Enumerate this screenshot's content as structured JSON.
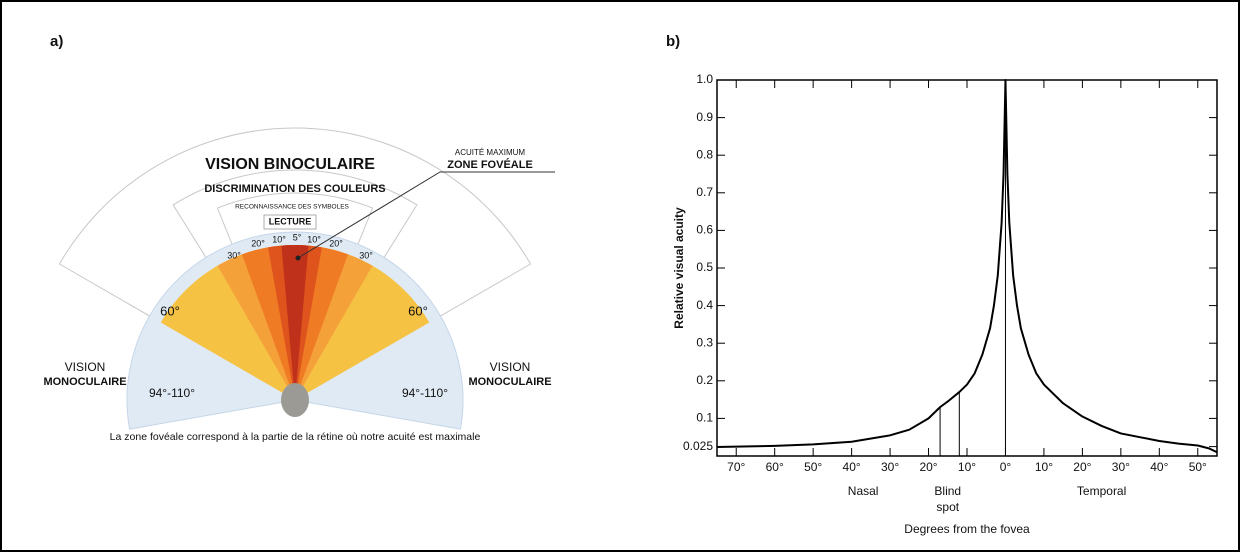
{
  "panel_a": {
    "label": "a)",
    "binocular": "VISION BINOCULAIRE",
    "colors": "DISCRIMINATION DES COULEURS",
    "symbols": "RECONNAISSANCE DES SYMBOLES",
    "reading": "LECTURE",
    "acuity": "ACUITÉ MAXIMUM",
    "fovea": "ZONE FOVÉALE",
    "angle_labels": [
      "60°",
      "30°",
      "20°",
      "10°",
      "5°",
      "10°",
      "20°",
      "30°",
      "60°"
    ],
    "monocular_left": [
      "VISION",
      "MONOCULAIRE"
    ],
    "monocular_right": [
      "VISION",
      "MONOCULAIRE"
    ],
    "range_left": "94°-110°",
    "range_right": "94°-110°",
    "caption": "La zone fovéale correspond à la partie de la rétine où notre acuité est maximale"
  },
  "chart_data": {
    "type": "line",
    "label": "b)",
    "xlabel": "Degrees from the fovea",
    "ylabel": "Relative visual acuity",
    "x": [
      -75,
      -70,
      -60,
      -50,
      -40,
      -30,
      -25,
      -20,
      -17,
      -15,
      -12,
      -10,
      -8,
      -6,
      -4,
      -3,
      -2,
      -1,
      -0.5,
      0,
      0.5,
      1,
      2,
      3,
      4,
      6,
      8,
      10,
      15,
      20,
      25,
      30,
      40,
      45,
      50,
      53,
      55
    ],
    "series": [
      {
        "color": "#000000",
        "values": [
          0.024,
          0.025,
          0.027,
          0.031,
          0.038,
          0.055,
          0.07,
          0.1,
          0.13,
          0.145,
          0.17,
          0.19,
          0.22,
          0.27,
          0.34,
          0.4,
          0.48,
          0.62,
          0.75,
          1.0,
          0.75,
          0.62,
          0.48,
          0.4,
          0.34,
          0.27,
          0.22,
          0.19,
          0.14,
          0.105,
          0.08,
          0.06,
          0.04,
          0.033,
          0.028,
          0.02,
          0.01
        ]
      }
    ],
    "vertical_lines": [
      {
        "x": -17,
        "y": 0.13
      },
      {
        "x": -12,
        "y": 0.17
      },
      {
        "x": 0,
        "y": 1.0
      }
    ],
    "xlim": [
      -75,
      55
    ],
    "ylim": [
      0,
      1
    ],
    "xticks": [
      {
        "value": -70,
        "label": "70°"
      },
      {
        "value": -60,
        "label": "60°"
      },
      {
        "value": -50,
        "label": "50°"
      },
      {
        "value": -40,
        "label": "40°"
      },
      {
        "value": -30,
        "label": "30°"
      },
      {
        "value": -20,
        "label": "20°"
      },
      {
        "value": -10,
        "label": "10°"
      },
      {
        "value": 0,
        "label": "0°"
      },
      {
        "value": 10,
        "label": "10°"
      },
      {
        "value": 20,
        "label": "20°"
      },
      {
        "value": 30,
        "label": "30°"
      },
      {
        "value": 40,
        "label": "40°"
      },
      {
        "value": 50,
        "label": "50°"
      }
    ],
    "yticks": [
      0.025,
      0.1,
      0.2,
      0.3,
      0.4,
      0.5,
      0.6,
      0.7,
      0.8,
      0.9,
      {
        "value": 1,
        "label": "1.0"
      }
    ],
    "annotations": [
      {
        "text": "Nasal",
        "x": -37
      },
      {
        "text": "Blind",
        "x": -15
      },
      {
        "text": "spot",
        "x": -15
      },
      {
        "text": "Temporal",
        "x": 25
      }
    ]
  }
}
